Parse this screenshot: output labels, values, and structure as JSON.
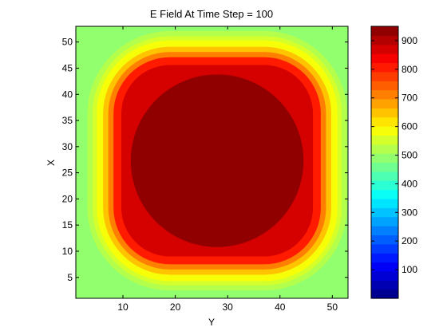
{
  "chart_data": {
    "type": "heatmap",
    "title": "E Field At Time Step = 100",
    "xlabel": "Y",
    "ylabel": "X",
    "xlim": [
      1,
      53
    ],
    "ylim": [
      1,
      53
    ],
    "x_ticks": [
      10,
      20,
      30,
      40,
      50
    ],
    "y_ticks": [
      5,
      10,
      15,
      20,
      25,
      30,
      35,
      40,
      45,
      50
    ],
    "field": {
      "center_y": 28,
      "center_x": 27.3,
      "core_radius": 16.5,
      "core_value": 950,
      "background_value": 480
    },
    "bands": [
      {
        "r_outer": 18.3,
        "value": 860
      },
      {
        "r_outer": 19.8,
        "value": 800
      },
      {
        "r_outer": 20.8,
        "value": 720
      },
      {
        "r_outer": 21.8,
        "value": 660
      },
      {
        "r_outer": 23.0,
        "value": 600
      },
      {
        "r_outer": 23.8,
        "value": 560
      },
      {
        "r_outer": 24.8,
        "value": 520
      }
    ],
    "colorbar": {
      "min": 0,
      "max": 950,
      "ticks": [
        100,
        200,
        300,
        400,
        500,
        600,
        700,
        800,
        900
      ],
      "levels": 30,
      "colors": [
        "#00008f",
        "#0000ff",
        "#0080ff",
        "#00ffff",
        "#80ff80",
        "#ffff00",
        "#ff8000",
        "#ff0000",
        "#800000"
      ]
    }
  }
}
